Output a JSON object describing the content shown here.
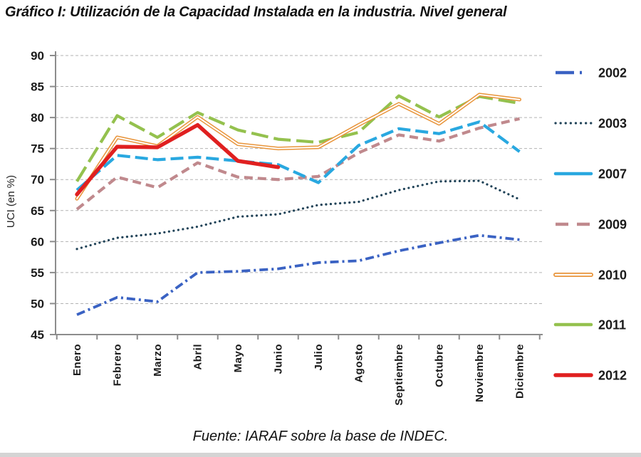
{
  "title": "Gráfico I: Utilización de la Capacidad Instalada en la industria. Nivel general",
  "footer": "Fuente: IARAF sobre la base de INDEC.",
  "chart_data": {
    "type": "line",
    "title": "Gráfico I: Utilización de la Capacidad Instalada en la industria. Nivel general",
    "xlabel": "",
    "ylabel": "UCI (en %)",
    "ylim": [
      45,
      90
    ],
    "yticks": [
      45,
      50,
      55,
      60,
      65,
      70,
      75,
      80,
      85,
      90
    ],
    "grid": "horizontal-dashed",
    "legend_position": "right",
    "x_labels_rotation": "vertical",
    "categories": [
      "Enero",
      "Febrero",
      "Marzo",
      "Abril",
      "Mayo",
      "Junio",
      "Julio",
      "Agosto",
      "Septiembre",
      "Octubre",
      "Noviembre",
      "Diciembre"
    ],
    "series": [
      {
        "name": "2002",
        "color": "#3A62C3",
        "style": "dash-dot",
        "values": [
          48.2,
          51.0,
          50.3,
          55.0,
          55.2,
          55.6,
          56.6,
          56.9,
          58.5,
          59.8,
          61.0,
          60.3
        ]
      },
      {
        "name": "2003",
        "color": "#1F4257",
        "style": "dotted",
        "values": [
          58.8,
          60.6,
          61.3,
          62.4,
          64.0,
          64.4,
          65.9,
          66.4,
          68.3,
          69.7,
          69.8,
          66.8
        ]
      },
      {
        "name": "2007",
        "color": "#29A8E0",
        "style": "long-dash",
        "values": [
          68.3,
          73.9,
          73.2,
          73.6,
          73.0,
          72.4,
          69.5,
          75.5,
          78.2,
          77.4,
          79.3,
          74.5
        ]
      },
      {
        "name": "2009",
        "color": "#C0898D",
        "style": "dash",
        "values": [
          65.2,
          70.4,
          68.7,
          72.7,
          70.4,
          70.0,
          70.5,
          74.3,
          77.2,
          76.2,
          78.3,
          79.8
        ]
      },
      {
        "name": "2010",
        "color": "#E8943A",
        "style": "double-line",
        "values": [
          66.9,
          76.8,
          75.4,
          80.1,
          75.7,
          75.0,
          75.2,
          78.8,
          82.2,
          79.0,
          83.7,
          82.9
        ]
      },
      {
        "name": "2011",
        "color": "#94C14E",
        "style": "long-dash-2",
        "values": [
          69.7,
          80.3,
          76.8,
          80.8,
          78.0,
          76.5,
          76.0,
          77.6,
          83.5,
          80.1,
          83.4,
          82.3
        ]
      },
      {
        "name": "2012",
        "color": "#E02020",
        "style": "solid-thick",
        "values": [
          67.6,
          75.3,
          75.2,
          78.8,
          73.0,
          72.0,
          null,
          null,
          null,
          null,
          null,
          null
        ]
      }
    ]
  }
}
